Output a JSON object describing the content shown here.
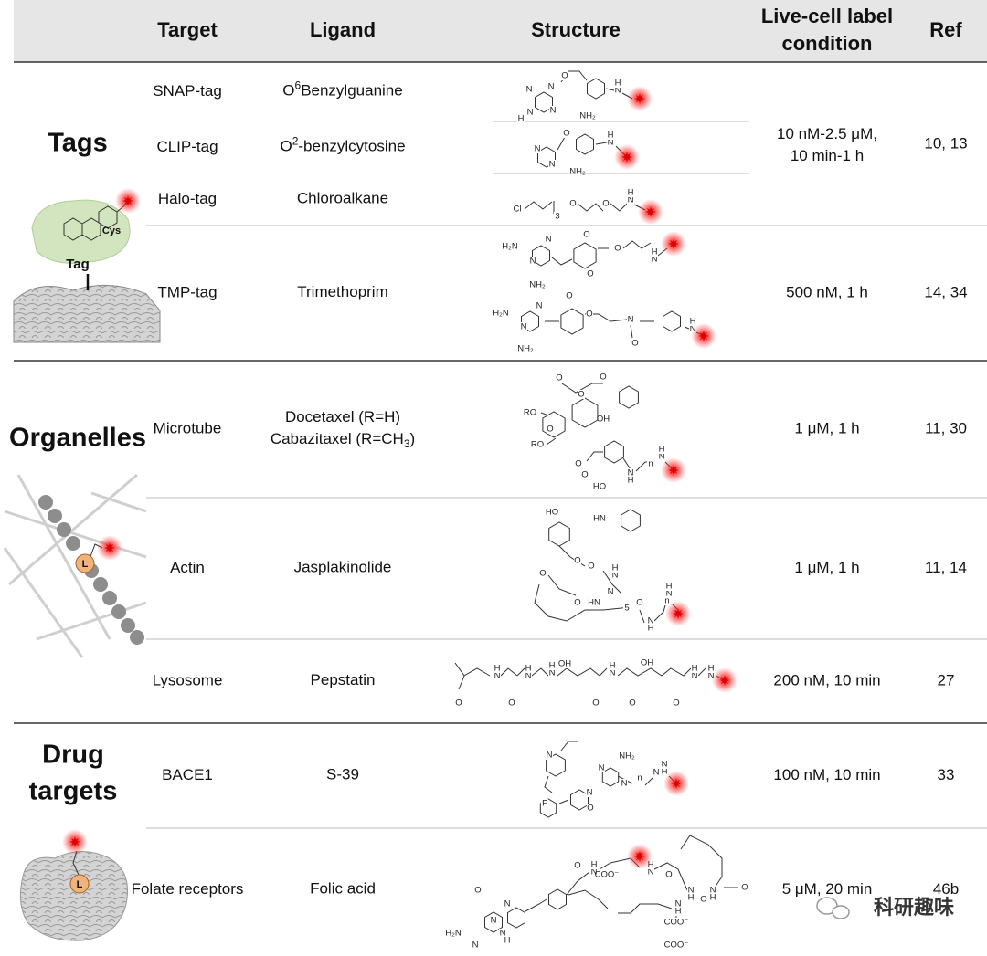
{
  "header": {
    "columns": [
      "Target",
      "Ligand",
      "Structure",
      [
        "Live-cell label",
        "condition"
      ],
      "Ref"
    ]
  },
  "groups": [
    {
      "label": [
        "Tags"
      ],
      "illustration_labels": [
        "Cys",
        "Tag"
      ]
    },
    {
      "label": [
        "Organelles"
      ],
      "illustration_labels": [
        "L"
      ]
    },
    {
      "label": [
        "Drug",
        "targets"
      ],
      "illustration_labels": [
        "L"
      ]
    }
  ],
  "rows": [
    {
      "target": "SNAP-tag",
      "ligand": [
        [
          {
            "text": "O"
          },
          {
            "sup": "6"
          },
          {
            "text": "Benzylguanine"
          }
        ]
      ],
      "structure_labels": [
        "O",
        "N",
        "N",
        "N",
        "N",
        "H",
        "NH₂",
        "N",
        "H"
      ],
      "condition": [
        "10 nM-2.5 μM,",
        "10 min-1 h"
      ],
      "ref": "10, 13"
    },
    {
      "target": "CLIP-tag",
      "ligand": [
        [
          {
            "text": "O"
          },
          {
            "sup": "2"
          },
          {
            "text": "-benzylcytosine"
          }
        ]
      ],
      "structure_labels": [
        "O",
        "N",
        "N",
        "NH₂",
        "N",
        "H"
      ]
    },
    {
      "target": "Halo-tag",
      "ligand": [
        [
          {
            "text": "Chloroalkane"
          }
        ]
      ],
      "structure_labels": [
        "Cl",
        "3",
        "O",
        "O",
        "N",
        "H"
      ]
    },
    {
      "target": "TMP-tag",
      "ligand": [
        [
          {
            "text": "Trimethoprim"
          }
        ]
      ],
      "structure_labels": [
        "H₂N",
        "N",
        "N",
        "NH₂",
        "O",
        "O",
        "O",
        "N",
        "H",
        "H₂N",
        "N",
        "N",
        "NH₂",
        "O",
        "O",
        "N",
        "O",
        "N",
        "H"
      ],
      "condition": [
        "500 nM, 1 h"
      ],
      "ref": "14, 34"
    },
    {
      "target": "Microtube",
      "ligand": [
        [
          {
            "text": "Docetaxel  (R=H)"
          }
        ],
        [
          {
            "text": "Cabazitaxel (R=CH"
          },
          {
            "sub": "3"
          },
          {
            "text": ")"
          }
        ]
      ],
      "structure_labels": [
        "O",
        "O",
        "RO",
        "O",
        "OH",
        "O",
        "RO",
        "O",
        "O",
        "HO",
        "N",
        "H",
        "n",
        "N",
        "H"
      ],
      "condition": [
        "1 μM, 1 h"
      ],
      "ref": "11, 30"
    },
    {
      "target": "Actin",
      "ligand": [
        [
          {
            "text": "Jasplakinolide"
          }
        ]
      ],
      "structure_labels": [
        "HO",
        "HN",
        "O",
        "N",
        "H",
        "O",
        "N",
        "O",
        "O",
        "HN",
        "O",
        "N",
        "H",
        "n",
        "N",
        "H",
        "5"
      ],
      "condition": [
        "1 μM, 1 h"
      ],
      "ref": "11, 14"
    },
    {
      "target": "Lysosome",
      "ligand": [
        [
          {
            "text": "Pepstatin"
          }
        ]
      ],
      "structure_labels": [
        "O",
        "N",
        "H",
        "O",
        "N",
        "H",
        "OH",
        "O",
        "N",
        "H",
        "O",
        "N",
        "H",
        "OH",
        "O",
        "N",
        "H",
        "N",
        "H"
      ],
      "condition": [
        "200 nM, 10 min"
      ],
      "ref": "27"
    },
    {
      "target": "BACE1",
      "ligand": [
        [
          {
            "text": "S-39"
          }
        ]
      ],
      "structure_labels": [
        "N",
        "N",
        "NH₂",
        "N",
        "O",
        "N",
        "n",
        "N",
        "H",
        "N",
        "F"
      ],
      "condition": [
        "100 nM, 10 min"
      ],
      "ref": "33"
    },
    {
      "target": "Folate receptors",
      "ligand": [
        [
          {
            "text": "Folic acid"
          }
        ]
      ],
      "structure_labels": [
        "O",
        "N",
        "H",
        "COO⁻",
        "O",
        "N",
        "H",
        "O",
        "N",
        "H",
        "O",
        "N",
        "H",
        "COO⁻",
        "O",
        "N",
        "H",
        "N",
        "N",
        "O",
        "N",
        "H",
        "H₂N",
        "N",
        "COO⁻"
      ],
      "condition": [
        "5 μM, 20 min"
      ],
      "ref": "46b"
    }
  ],
  "watermark": "科研趣味"
}
